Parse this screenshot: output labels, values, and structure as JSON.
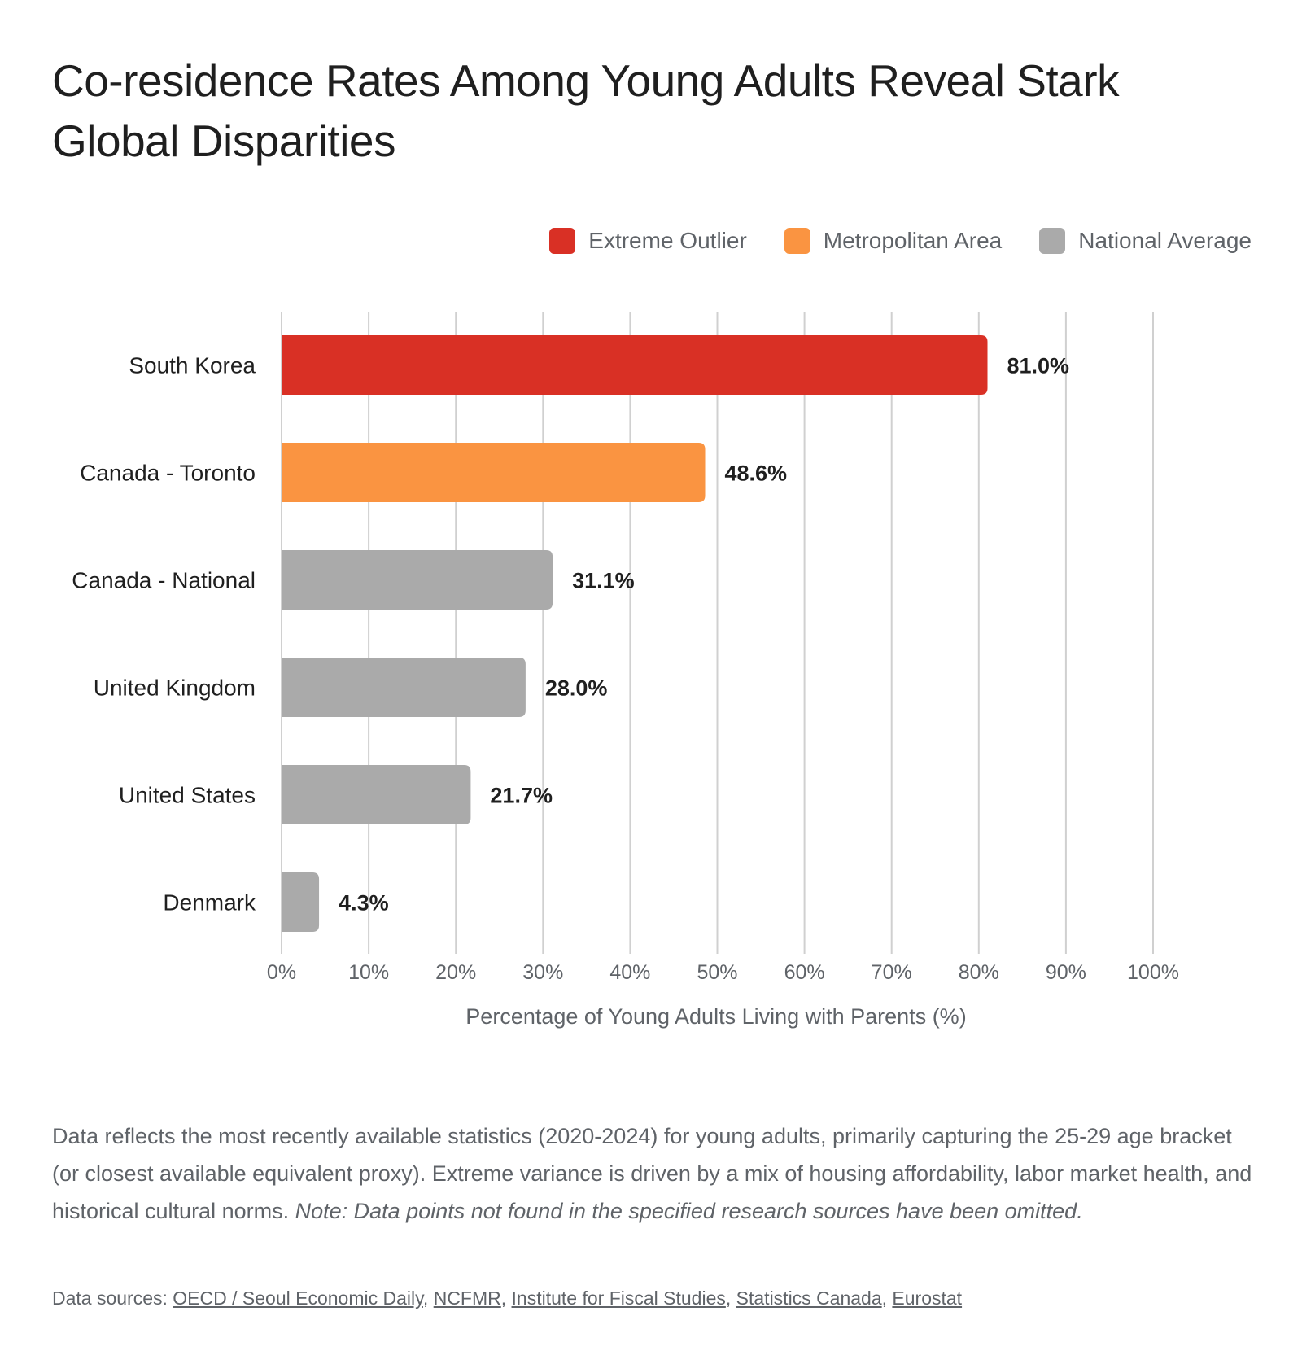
{
  "title": "Co-residence Rates Among Young Adults Reveal Stark Global Disparities",
  "legend": [
    {
      "label": "Extreme Outlier",
      "color": "#d93025"
    },
    {
      "label": "Metropolitan Area",
      "color": "#fa9441"
    },
    {
      "label": "National Average",
      "color": "#aaaaaa"
    }
  ],
  "chart_data": {
    "type": "bar",
    "orientation": "horizontal",
    "categories": [
      "South Korea",
      "Canada - Toronto",
      "Canada - National",
      "United Kingdom",
      "United States",
      "Denmark"
    ],
    "values": [
      81.0,
      48.6,
      31.1,
      28.0,
      21.7,
      4.3
    ],
    "value_labels": [
      "81.0%",
      "48.6%",
      "31.1%",
      "28.0%",
      "21.7%",
      "4.3%"
    ],
    "groups": [
      "Extreme Outlier",
      "Metropolitan Area",
      "National Average",
      "National Average",
      "National Average",
      "National Average"
    ],
    "xlabel": "Percentage of Young Adults Living with Parents (%)",
    "ylabel": "",
    "xlim": [
      0,
      100
    ],
    "xticks": [
      0,
      10,
      20,
      30,
      40,
      50,
      60,
      70,
      80,
      90,
      100
    ],
    "xtick_labels": [
      "0%",
      "10%",
      "20%",
      "30%",
      "40%",
      "50%",
      "60%",
      "70%",
      "80%",
      "90%",
      "100%"
    ],
    "grid": "vertical",
    "legend_position": "top-right"
  },
  "note": {
    "text": "Data reflects the most recently available statistics (2020-2024) for young adults, primarily capturing the 25-29 age bracket (or closest available equivalent proxy). Extreme variance is driven by a mix of housing affordability, labor market health, and historical cultural norms.",
    "italic": "Note: Data points not found in the specified research sources have been omitted."
  },
  "sources": {
    "prefix": "Data sources:",
    "links": [
      "OECD / Seoul Economic Daily",
      "NCFMR",
      "Institute for Fiscal Studies",
      "Statistics Canada",
      "Eurostat"
    ]
  }
}
